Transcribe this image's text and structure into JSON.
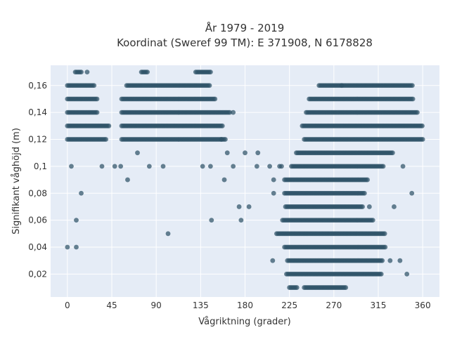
{
  "chart_data": {
    "type": "scatter",
    "title": "År 1979 - 2019",
    "subtitle": "Koordinat (Sweref 99 TM): E 371908, N 6178828",
    "xlabel": "Vågriktning (grader)",
    "ylabel": "Signifikant våghöjd (m)",
    "xlim": [
      -17,
      377
    ],
    "ylim": [
      0.003,
      0.175
    ],
    "xticks": [
      0,
      45,
      90,
      135,
      180,
      225,
      270,
      315,
      360
    ],
    "xtick_labels": [
      "0",
      "45",
      "90",
      "135",
      "180",
      "225",
      "270",
      "315",
      "360"
    ],
    "yticks": [
      0.02,
      0.04,
      0.06,
      0.08,
      0.1,
      0.12,
      0.14,
      0.16
    ],
    "ytick_labels": [
      "0,02",
      "0,04",
      "0,06",
      "0,08",
      "0,1",
      "0,12",
      "0,14",
      "0,16"
    ],
    "grid": true,
    "plot_background": "#e5ecf6",
    "marker_color": "#2e5266",
    "bands": [
      {
        "y": 0.01,
        "ranges": [
          [
            225,
            233
          ],
          [
            240,
            283
          ]
        ]
      },
      {
        "y": 0.02,
        "ranges": [
          [
            222,
            318
          ]
        ]
      },
      {
        "y": 0.03,
        "ranges": [
          [
            223,
            320
          ]
        ]
      },
      {
        "y": 0.04,
        "ranges": [
          [
            220,
            322
          ]
        ]
      },
      {
        "y": 0.05,
        "ranges": [
          [
            212,
            322
          ]
        ]
      },
      {
        "y": 0.06,
        "ranges": [
          [
            218,
            310
          ]
        ]
      },
      {
        "y": 0.07,
        "ranges": [
          [
            221,
            300
          ]
        ]
      },
      {
        "y": 0.08,
        "ranges": [
          [
            220,
            302
          ]
        ]
      },
      {
        "y": 0.09,
        "ranges": [
          [
            220,
            305
          ]
        ]
      },
      {
        "y": 0.1,
        "ranges": [
          [
            227,
            320
          ]
        ]
      },
      {
        "y": 0.11,
        "ranges": [
          [
            232,
            330
          ]
        ]
      },
      {
        "y": 0.12,
        "ranges": [
          [
            0,
            40
          ],
          [
            55,
            160
          ],
          [
            240,
            360
          ]
        ]
      },
      {
        "y": 0.13,
        "ranges": [
          [
            0,
            42
          ],
          [
            55,
            158
          ],
          [
            238,
            360
          ]
        ]
      },
      {
        "y": 0.14,
        "ranges": [
          [
            0,
            30
          ],
          [
            55,
            165
          ],
          [
            242,
            355
          ]
        ]
      },
      {
        "y": 0.15,
        "ranges": [
          [
            0,
            30
          ],
          [
            55,
            150
          ],
          [
            245,
            350
          ]
        ]
      },
      {
        "y": 0.16,
        "ranges": [
          [
            0,
            28
          ],
          [
            60,
            145
          ],
          [
            255,
            350
          ]
        ]
      },
      {
        "y": 0.17,
        "ranges": [
          [
            8,
            15
          ],
          [
            75,
            82
          ],
          [
            130,
            145
          ]
        ]
      }
    ],
    "points": [
      {
        "x": 0,
        "y": 0.04
      },
      {
        "x": 9,
        "y": 0.04
      },
      {
        "x": 9,
        "y": 0.06
      },
      {
        "x": 14,
        "y": 0.08
      },
      {
        "x": 4,
        "y": 0.1
      },
      {
        "x": 35,
        "y": 0.1
      },
      {
        "x": 48,
        "y": 0.1
      },
      {
        "x": 54,
        "y": 0.1
      },
      {
        "x": 61,
        "y": 0.09
      },
      {
        "x": 102,
        "y": 0.05
      },
      {
        "x": 146,
        "y": 0.06
      },
      {
        "x": 159,
        "y": 0.09
      },
      {
        "x": 168,
        "y": 0.1
      },
      {
        "x": 174,
        "y": 0.07
      },
      {
        "x": 176,
        "y": 0.06
      },
      {
        "x": 184,
        "y": 0.07
      },
      {
        "x": 180,
        "y": 0.11
      },
      {
        "x": 193,
        "y": 0.11
      },
      {
        "x": 192,
        "y": 0.1
      },
      {
        "x": 205,
        "y": 0.1
      },
      {
        "x": 209,
        "y": 0.09
      },
      {
        "x": 209,
        "y": 0.08
      },
      {
        "x": 208,
        "y": 0.03
      },
      {
        "x": 215,
        "y": 0.1
      },
      {
        "x": 217,
        "y": 0.1
      },
      {
        "x": 306,
        "y": 0.07
      },
      {
        "x": 340,
        "y": 0.1
      },
      {
        "x": 331,
        "y": 0.07
      },
      {
        "x": 349,
        "y": 0.08
      },
      {
        "x": 344,
        "y": 0.02
      },
      {
        "x": 337,
        "y": 0.03
      },
      {
        "x": 327,
        "y": 0.03
      },
      {
        "x": 278,
        "y": 0.16
      },
      {
        "x": 168,
        "y": 0.14
      },
      {
        "x": 156,
        "y": 0.12
      },
      {
        "x": 162,
        "y": 0.11
      },
      {
        "x": 71,
        "y": 0.11
      },
      {
        "x": 97,
        "y": 0.1
      },
      {
        "x": 83,
        "y": 0.1
      },
      {
        "x": 137,
        "y": 0.1
      },
      {
        "x": 145,
        "y": 0.1
      },
      {
        "x": 20,
        "y": 0.17
      }
    ]
  }
}
